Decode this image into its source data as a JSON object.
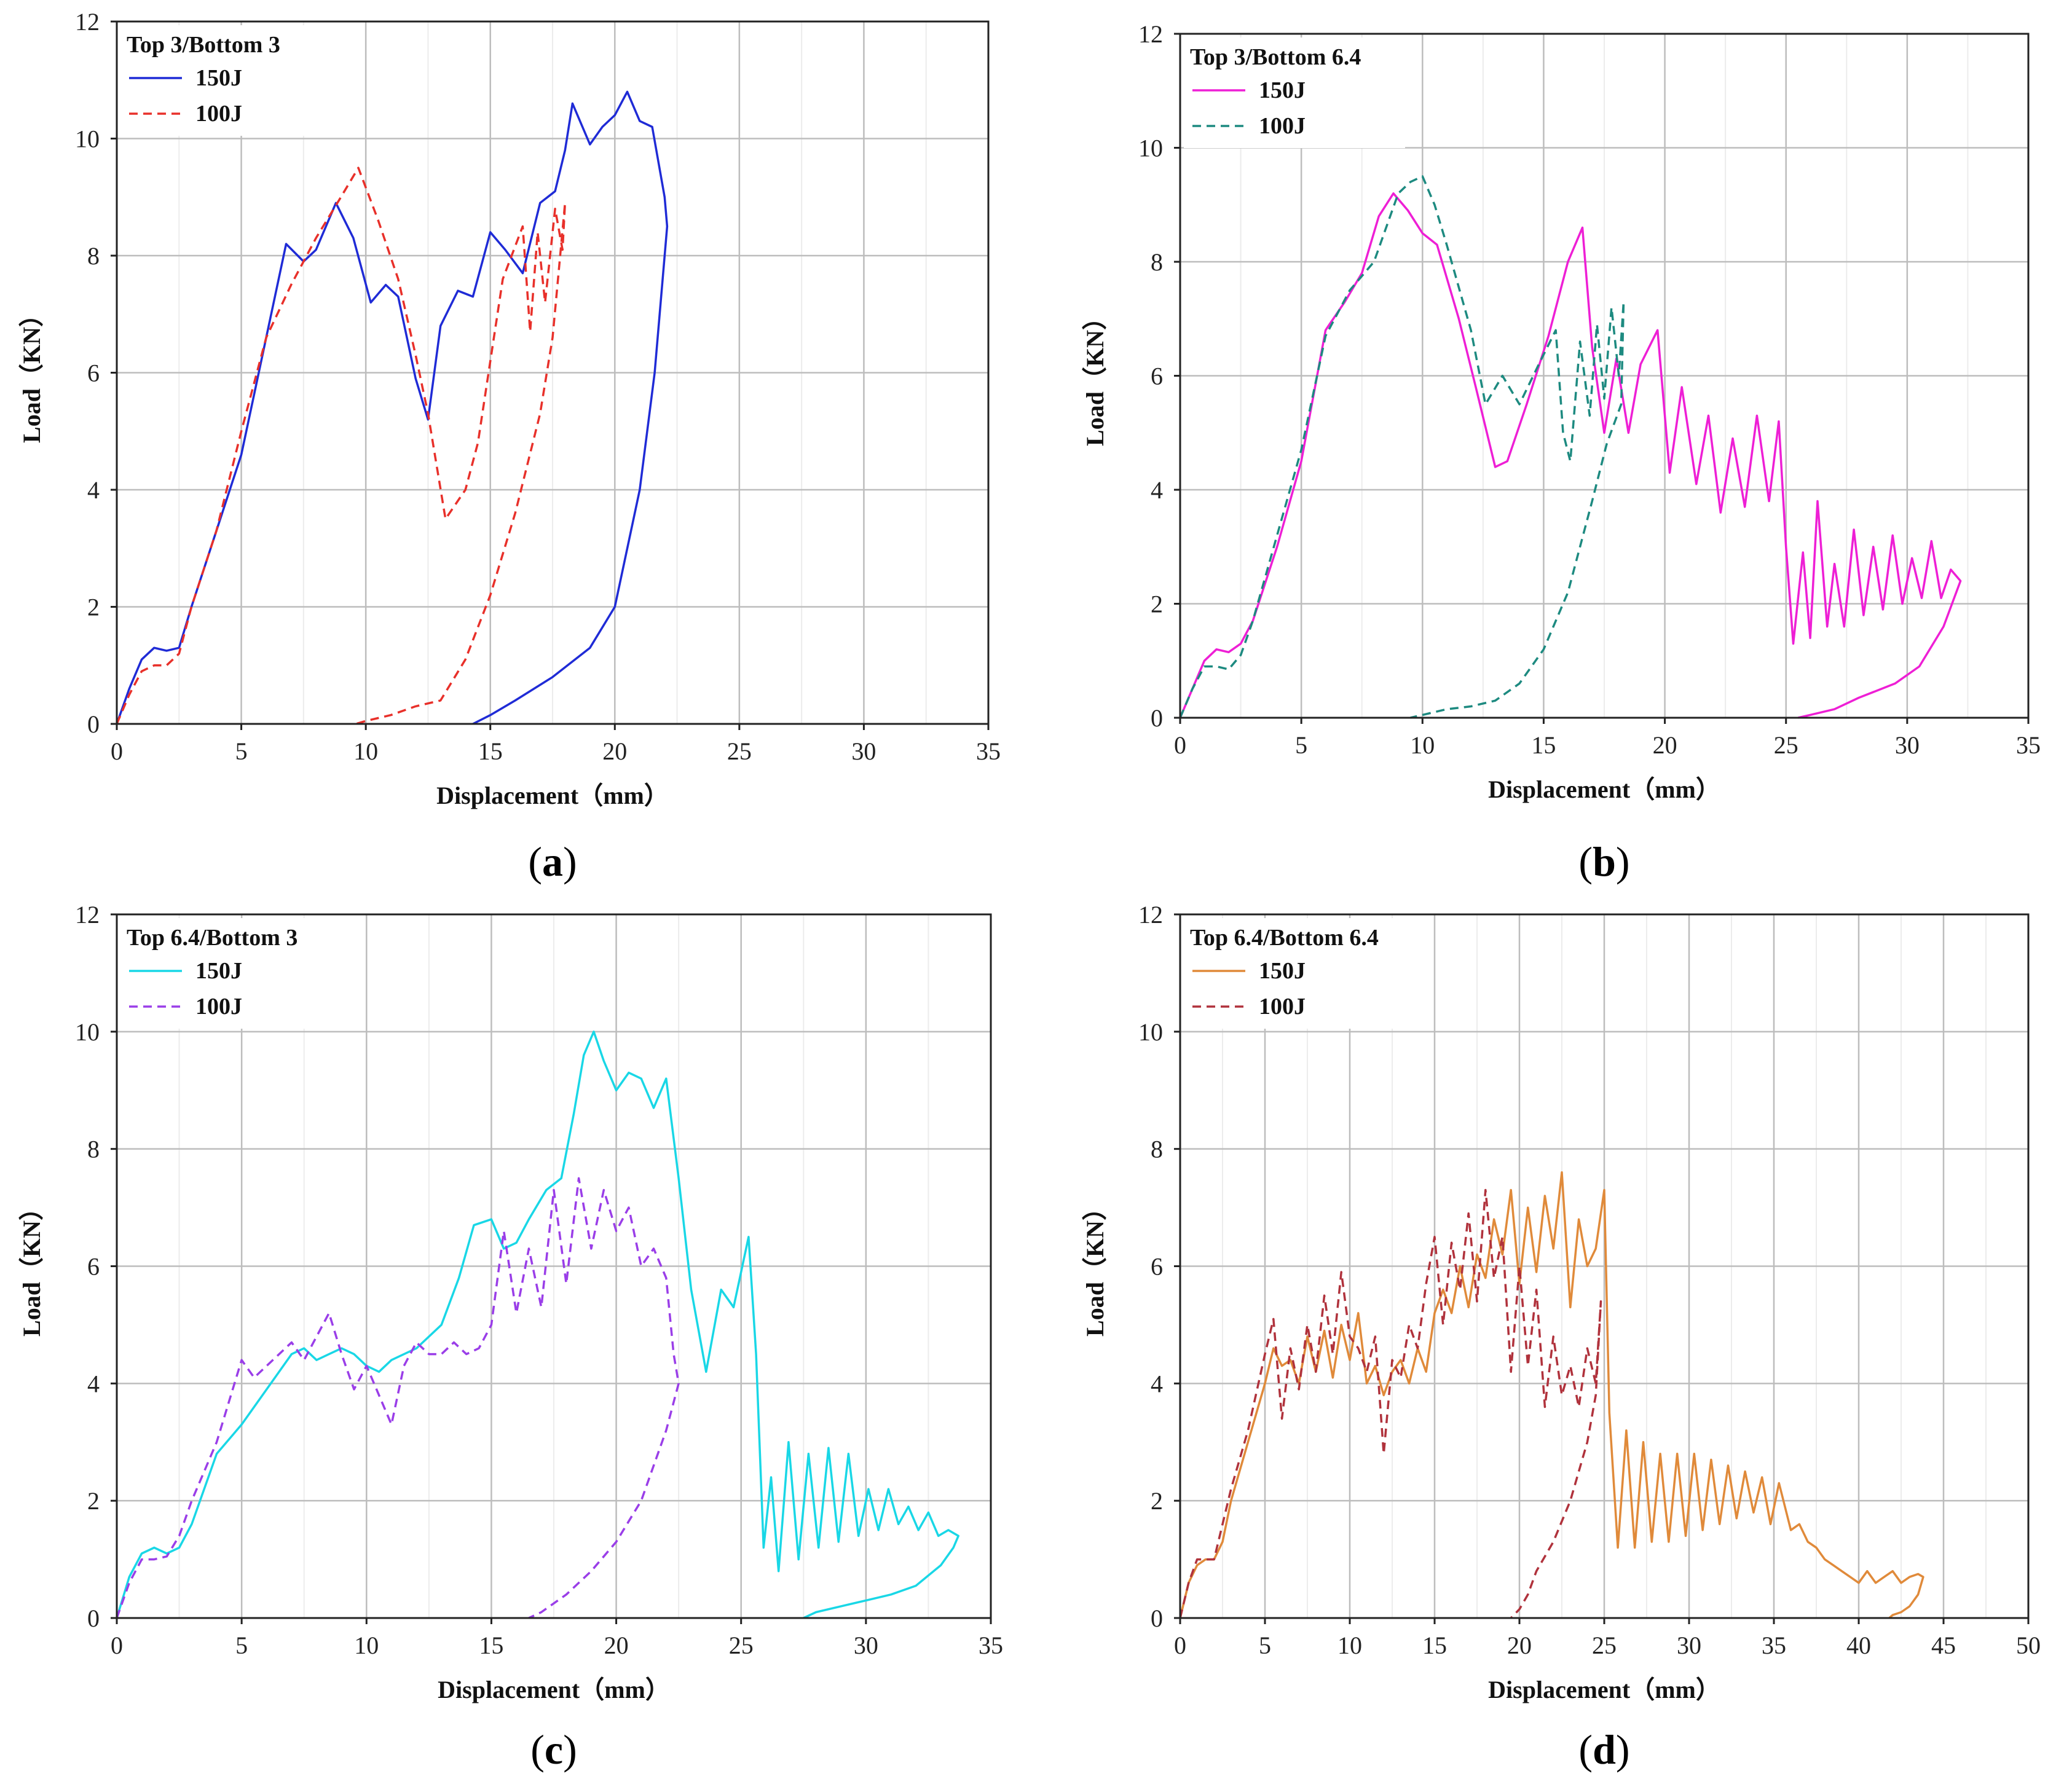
{
  "chart_data": [
    {
      "type": "line",
      "panel_label": "a",
      "legend_title": "Top 3/Bottom 3",
      "xlabel": "Displacement（mm）",
      "ylabel": "Load（KN）",
      "xlim": [
        0,
        35
      ],
      "ylim": [
        0,
        12
      ],
      "x_ticks": [
        "0",
        "5",
        "10",
        "15",
        "20",
        "25",
        "30",
        "35"
      ],
      "y_ticks": [
        "0",
        "2",
        "4",
        "6",
        "8",
        "10",
        "12"
      ],
      "grid": true,
      "legend_position": "top-left",
      "series": [
        {
          "name": "150J",
          "color": "#1f2bd6",
          "style": "solid",
          "x": [
            0,
            0.5,
            1,
            1.5,
            2,
            2.5,
            3,
            4,
            5,
            6,
            6.8,
            7.5,
            8,
            8.8,
            9.5,
            10.2,
            10.8,
            11.3,
            12,
            12.5,
            13,
            13.7,
            14.3,
            15,
            15.6,
            16.3,
            17,
            17.6,
            18,
            18.3,
            19,
            19.5,
            20,
            20.5,
            21,
            21.5,
            22,
            22.1,
            21.6,
            21,
            20,
            19,
            17.5,
            16,
            15,
            14.3
          ],
          "y": [
            0,
            0.6,
            1.1,
            1.3,
            1.25,
            1.3,
            2,
            3.3,
            4.6,
            6.6,
            8.2,
            7.9,
            8.1,
            8.9,
            8.3,
            7.2,
            7.5,
            7.3,
            5.9,
            5.2,
            6.8,
            7.4,
            7.3,
            8.4,
            8.1,
            7.7,
            8.9,
            9.1,
            9.8,
            10.6,
            9.9,
            10.2,
            10.4,
            10.8,
            10.3,
            10.2,
            9.0,
            8.5,
            6.0,
            4.0,
            2.0,
            1.3,
            0.8,
            0.4,
            0.15,
            0
          ]
        },
        {
          "name": "100J",
          "color": "#e8302a",
          "style": "dashed",
          "x": [
            0,
            0.5,
            1,
            1.5,
            2,
            2.5,
            3,
            4,
            5,
            6,
            7,
            8,
            9,
            9.7,
            10.5,
            11.3,
            12,
            12.5,
            13.2,
            14,
            14.5,
            15.5,
            16.3,
            16.6,
            16.9,
            17.2,
            17.6,
            17.9,
            18,
            17.5,
            17,
            16,
            15,
            14,
            13,
            12,
            11,
            10,
            9.6
          ],
          "y": [
            0,
            0.5,
            0.9,
            1.0,
            1.0,
            1.2,
            2.0,
            3.3,
            5.0,
            6.6,
            7.5,
            8.3,
            9.0,
            9.5,
            8.6,
            7.6,
            6.3,
            5.3,
            3.5,
            4.0,
            4.8,
            7.6,
            8.5,
            6.7,
            8.4,
            7.2,
            8.8,
            8.1,
            8.9,
            6.6,
            5.3,
            3.6,
            2.2,
            1.1,
            0.4,
            0.3,
            0.15,
            0.05,
            0
          ]
        }
      ]
    },
    {
      "type": "line",
      "panel_label": "b",
      "legend_title": "Top 3/Bottom 6.4",
      "xlabel": "Displacement（mm）",
      "ylabel": "Load（KN）",
      "xlim": [
        0,
        35
      ],
      "ylim": [
        0,
        12
      ],
      "x_ticks": [
        "0",
        "5",
        "10",
        "15",
        "20",
        "25",
        "30",
        "35"
      ],
      "y_ticks": [
        "0",
        "2",
        "4",
        "6",
        "8",
        "10",
        "12"
      ],
      "grid": true,
      "legend_position": "top-left",
      "series": [
        {
          "name": "150J",
          "color": "#ee1fd5",
          "style": "solid",
          "x": [
            0,
            0.5,
            1,
            1.5,
            2,
            2.5,
            3,
            4,
            5,
            6,
            6.8,
            7.5,
            8.2,
            8.8,
            9.4,
            10,
            10.6,
            11.5,
            12.2,
            13,
            13.5,
            14.3,
            15.2,
            16,
            16.6,
            17,
            17.5,
            18,
            18.5,
            19,
            19.7,
            20.2,
            20.7,
            21.3,
            21.8,
            22.3,
            22.8,
            23.3,
            23.8,
            24.3,
            24.7,
            25,
            25.3,
            25.7,
            26,
            26.3,
            26.7,
            27,
            27.4,
            27.8,
            28.2,
            28.6,
            29,
            29.4,
            29.8,
            30.2,
            30.6,
            31,
            31.4,
            31.8,
            32.2,
            31.5,
            30.5,
            29.5,
            28,
            27,
            26,
            25.5
          ],
          "y": [
            0,
            0.5,
            1.0,
            1.2,
            1.15,
            1.3,
            1.7,
            3.0,
            4.5,
            6.8,
            7.3,
            7.8,
            8.8,
            9.2,
            8.9,
            8.5,
            8.3,
            7.0,
            5.8,
            4.4,
            4.5,
            5.5,
            6.7,
            8.0,
            8.6,
            6.5,
            5.0,
            6.3,
            5.0,
            6.2,
            6.8,
            4.3,
            5.8,
            4.1,
            5.3,
            3.6,
            4.9,
            3.7,
            5.3,
            3.8,
            5.2,
            3.0,
            1.3,
            2.9,
            1.4,
            3.8,
            1.6,
            2.7,
            1.6,
            3.3,
            1.8,
            3.0,
            1.9,
            3.2,
            2.0,
            2.8,
            2.1,
            3.1,
            2.1,
            2.6,
            2.4,
            1.6,
            0.9,
            0.6,
            0.35,
            0.15,
            0.05,
            0
          ]
        },
        {
          "name": "100J",
          "color": "#1d8a80",
          "style": "dashed",
          "x": [
            0,
            0.5,
            1,
            1.5,
            2,
            2.5,
            3,
            4,
            5,
            6,
            7,
            8,
            9,
            9.5,
            10,
            10.5,
            11,
            12,
            12.6,
            13.3,
            14,
            14.8,
            15.5,
            15.8,
            16.1,
            16.5,
            16.9,
            17.2,
            17.5,
            17.8,
            18.1,
            18.3,
            18.2,
            17.6,
            17,
            16,
            15,
            14,
            13,
            12,
            11,
            10,
            9.5
          ],
          "y": [
            0,
            0.5,
            0.9,
            0.9,
            0.85,
            1.1,
            1.7,
            3.2,
            4.7,
            6.7,
            7.5,
            8.0,
            9.2,
            9.4,
            9.5,
            9.0,
            8.3,
            6.8,
            5.5,
            6.0,
            5.5,
            6.2,
            6.8,
            5.0,
            4.5,
            6.6,
            5.3,
            6.9,
            5.6,
            7.2,
            6.0,
            7.3,
            5.5,
            4.8,
            3.8,
            2.2,
            1.2,
            0.6,
            0.3,
            0.2,
            0.15,
            0.05,
            0
          ]
        }
      ]
    },
    {
      "type": "line",
      "panel_label": "c",
      "legend_title": "Top 6.4/Bottom 3",
      "xlabel": "Displacement（mm）",
      "ylabel": "Load（KN）",
      "xlim": [
        0,
        35
      ],
      "ylim": [
        0,
        12
      ],
      "x_ticks": [
        "0",
        "5",
        "10",
        "15",
        "20",
        "25",
        "30",
        "35"
      ],
      "y_ticks": [
        "0",
        "2",
        "4",
        "6",
        "8",
        "10",
        "12"
      ],
      "grid": true,
      "legend_position": "top-left",
      "series": [
        {
          "name": "150J",
          "color": "#19d7e6",
          "style": "solid",
          "x": [
            0,
            0.5,
            1,
            1.5,
            2,
            2.5,
            3,
            4,
            5,
            6,
            7,
            7.5,
            8,
            8.5,
            9,
            9.5,
            10,
            10.5,
            11,
            12,
            13,
            13.7,
            14.3,
            15,
            15.5,
            16,
            16.5,
            17.2,
            17.8,
            18.3,
            18.7,
            19.1,
            19.5,
            20,
            20.5,
            21,
            21.5,
            22,
            22.5,
            23,
            23.6,
            24.2,
            24.7,
            25.3,
            25.6,
            25.9,
            26.2,
            26.5,
            26.9,
            27.3,
            27.7,
            28.1,
            28.5,
            28.9,
            29.3,
            29.7,
            30.1,
            30.5,
            30.9,
            31.3,
            31.7,
            32.1,
            32.5,
            32.9,
            33.3,
            33.7,
            33.5,
            33,
            32,
            31,
            30,
            29,
            28,
            27.5
          ],
          "y": [
            0,
            0.7,
            1.1,
            1.2,
            1.1,
            1.2,
            1.6,
            2.8,
            3.3,
            3.9,
            4.5,
            4.6,
            4.4,
            4.5,
            4.6,
            4.5,
            4.3,
            4.2,
            4.4,
            4.6,
            5.0,
            5.8,
            6.7,
            6.8,
            6.3,
            6.4,
            6.8,
            7.3,
            7.5,
            8.6,
            9.6,
            10.0,
            9.5,
            9.0,
            9.3,
            9.2,
            8.7,
            9.2,
            7.5,
            5.6,
            4.2,
            5.6,
            5.3,
            6.5,
            4.5,
            1.2,
            2.4,
            0.8,
            3.0,
            1.0,
            2.8,
            1.2,
            2.9,
            1.3,
            2.8,
            1.4,
            2.2,
            1.5,
            2.2,
            1.6,
            1.9,
            1.5,
            1.8,
            1.4,
            1.5,
            1.4,
            1.2,
            0.9,
            0.55,
            0.4,
            0.3,
            0.2,
            0.1,
            0
          ]
        },
        {
          "name": "100J",
          "color": "#9a3ee8",
          "style": "dashed",
          "x": [
            0,
            0.5,
            1,
            1.5,
            2,
            2.5,
            3,
            4,
            5,
            5.5,
            6,
            7,
            7.5,
            8,
            8.5,
            9,
            9.5,
            10,
            10.5,
            11,
            11.5,
            12,
            12.5,
            13,
            13.5,
            14,
            14.5,
            15,
            15.5,
            16,
            16.5,
            17,
            17.5,
            18,
            18.5,
            19,
            19.5,
            20,
            20.5,
            21,
            21.5,
            22,
            22.3,
            22.5,
            22,
            21,
            20,
            19,
            18,
            17,
            16.5
          ],
          "y": [
            0,
            0.6,
            1.0,
            1.0,
            1.05,
            1.4,
            2.0,
            3.0,
            4.4,
            4.1,
            4.3,
            4.7,
            4.4,
            4.8,
            5.2,
            4.5,
            3.9,
            4.3,
            3.8,
            3.3,
            4.3,
            4.7,
            4.5,
            4.5,
            4.7,
            4.5,
            4.6,
            5.0,
            6.6,
            5.2,
            6.3,
            5.3,
            7.3,
            5.7,
            7.5,
            6.3,
            7.3,
            6.6,
            7.0,
            6.0,
            6.3,
            5.8,
            4.5,
            4.0,
            3.2,
            2.0,
            1.3,
            0.8,
            0.4,
            0.1,
            0
          ]
        }
      ]
    },
    {
      "type": "line",
      "panel_label": "d",
      "legend_title": "Top 6.4/Bottom 6.4",
      "xlabel": "Displacement（mm）",
      "ylabel": "Load（KN）",
      "xlim": [
        0,
        50
      ],
      "ylim": [
        0,
        12
      ],
      "x_ticks": [
        "0",
        "5",
        "10",
        "15",
        "20",
        "25",
        "30",
        "35",
        "40",
        "45",
        "50"
      ],
      "y_ticks": [
        "0",
        "2",
        "4",
        "6",
        "8",
        "10",
        "12"
      ],
      "grid": true,
      "legend_position": "top-left",
      "series": [
        {
          "name": "150J",
          "color": "#e08a3a",
          "style": "solid",
          "x": [
            0,
            0.5,
            1,
            1.5,
            2,
            2.5,
            3,
            4,
            5,
            5.5,
            6,
            6.5,
            7,
            7.5,
            8,
            8.5,
            9,
            9.5,
            10,
            10.5,
            11,
            11.5,
            12,
            12.5,
            13,
            13.5,
            14,
            14.5,
            15,
            15.5,
            16,
            16.5,
            17,
            17.5,
            18,
            18.5,
            19,
            19.5,
            20,
            20.5,
            21,
            21.5,
            22,
            22.5,
            23,
            23.5,
            24,
            24.5,
            25,
            25.3,
            25.8,
            26.3,
            26.8,
            27.3,
            27.8,
            28.3,
            28.8,
            29.3,
            29.8,
            30.3,
            30.8,
            31.3,
            31.8,
            32.3,
            32.8,
            33.3,
            33.8,
            34.3,
            34.8,
            35.3,
            36,
            36.5,
            37,
            37.5,
            38,
            38.5,
            39,
            39.5,
            40,
            40.5,
            41,
            41.5,
            42,
            42.5,
            43,
            43.5,
            43.8,
            43.5,
            43,
            42.5,
            42,
            41.8
          ],
          "y": [
            0,
            0.6,
            0.9,
            1.0,
            1.0,
            1.3,
            2.0,
            3.0,
            4.0,
            4.6,
            4.3,
            4.4,
            4.0,
            4.8,
            4.2,
            4.9,
            4.1,
            5.0,
            4.4,
            5.2,
            4.0,
            4.3,
            3.8,
            4.2,
            4.4,
            4.0,
            4.6,
            4.2,
            5.2,
            5.6,
            5.2,
            6.0,
            5.3,
            6.2,
            5.8,
            6.8,
            6.2,
            7.3,
            5.7,
            7.0,
            5.9,
            7.2,
            6.3,
            7.6,
            5.3,
            6.8,
            6.0,
            6.3,
            7.3,
            3.5,
            1.2,
            3.2,
            1.2,
            3.0,
            1.3,
            2.8,
            1.3,
            2.8,
            1.4,
            2.8,
            1.5,
            2.7,
            1.6,
            2.6,
            1.7,
            2.5,
            1.8,
            2.4,
            1.6,
            2.3,
            1.5,
            1.6,
            1.3,
            1.2,
            1.0,
            0.9,
            0.8,
            0.7,
            0.6,
            0.8,
            0.6,
            0.7,
            0.8,
            0.6,
            0.7,
            0.75,
            0.7,
            0.4,
            0.2,
            0.1,
            0.05,
            0
          ]
        },
        {
          "name": "100J",
          "color": "#b0323c",
          "style": "dashed",
          "x": [
            0,
            0.5,
            1,
            1.5,
            2,
            2.5,
            3,
            4,
            5,
            5.5,
            6,
            6.5,
            7,
            7.5,
            8,
            8.5,
            9,
            9.5,
            10,
            10.5,
            11,
            11.5,
            12,
            12.5,
            13,
            13.5,
            14,
            14.5,
            15,
            15.5,
            16,
            16.5,
            17,
            17.5,
            18,
            18.5,
            19,
            19.5,
            20,
            20.5,
            21,
            21.5,
            22,
            22.5,
            23,
            23.5,
            24,
            24.5,
            24.8,
            24.5,
            24,
            23,
            22,
            21,
            20.5,
            20,
            19.5
          ],
          "y": [
            0,
            0.6,
            1.0,
            1.0,
            1.0,
            1.6,
            2.2,
            3.2,
            4.5,
            5.1,
            3.4,
            4.6,
            3.9,
            5.0,
            4.2,
            5.5,
            4.5,
            5.9,
            4.8,
            4.6,
            4.2,
            4.8,
            2.8,
            4.4,
            4.1,
            5.0,
            4.6,
            5.7,
            6.5,
            5.0,
            6.4,
            5.6,
            6.9,
            5.4,
            7.3,
            5.8,
            6.5,
            4.2,
            6.0,
            4.3,
            5.6,
            3.6,
            4.8,
            3.8,
            4.3,
            3.6,
            4.6,
            4.0,
            5.4,
            3.8,
            3.0,
            2.0,
            1.3,
            0.8,
            0.4,
            0.15,
            0
          ]
        }
      ]
    }
  ]
}
